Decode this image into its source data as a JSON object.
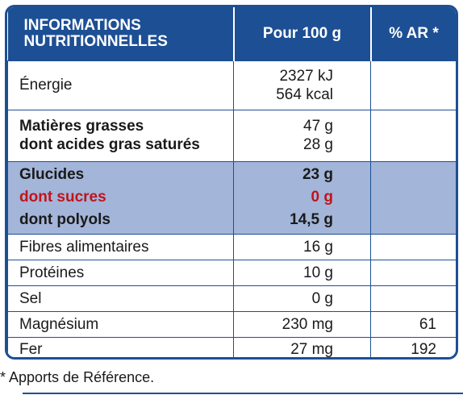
{
  "header": {
    "col_name_line1": "INFORMATIONS",
    "col_name_line2": "NUTRITIONNELLES",
    "col_per100": "Pour 100 g",
    "col_ar": "% AR *"
  },
  "rows": {
    "energie": {
      "name": "Énergie",
      "val1": "2327 kJ",
      "val2": "564 kcal",
      "ar": ""
    },
    "graisses": {
      "name1": "Matières grasses",
      "name2": "dont acides gras saturés",
      "val1": "47 g",
      "val2": "28 g",
      "ar": ""
    },
    "glucides": {
      "name1": "Glucides",
      "name2": "dont sucres",
      "name3": "dont polyols",
      "val1": "23 g",
      "val2": "0 g",
      "val3": "14,5 g",
      "ar": ""
    },
    "fibres": {
      "name": "Fibres alimentaires",
      "val": "16 g",
      "ar": ""
    },
    "proteines": {
      "name": "Protéines",
      "val": "10 g",
      "ar": ""
    },
    "sel": {
      "name": "Sel",
      "val": "0 g",
      "ar": ""
    },
    "magnesium": {
      "name": "Magnésium",
      "val": "230 mg",
      "ar": "61"
    },
    "fer": {
      "name": "Fer",
      "val": "27 mg",
      "ar": "192"
    }
  },
  "footnote": "* Apports de Référence.",
  "colors": {
    "brand_blue": "#1d4f94",
    "highlight": "#a3b5d9",
    "sugar_red": "#c0141b"
  }
}
